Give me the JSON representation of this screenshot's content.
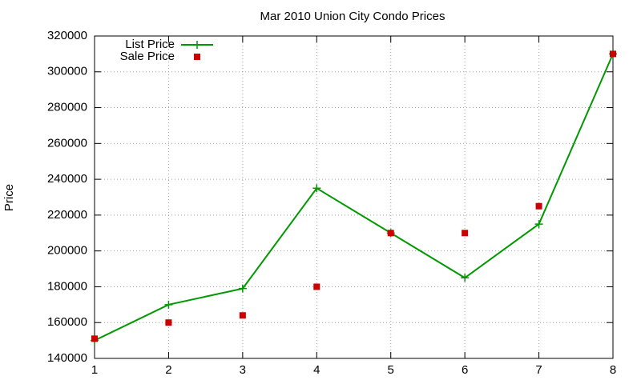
{
  "chart_data": {
    "type": "line",
    "title": "Mar 2010 Union City Condo Prices",
    "y_label": "Price",
    "x": [
      1,
      2,
      3,
      4,
      5,
      6,
      7,
      8
    ],
    "series": [
      {
        "name": "List Price",
        "color": "#009900",
        "mode": "linespoints",
        "values": [
          150000,
          170000,
          179000,
          235000,
          210000,
          185000,
          215000,
          310000
        ]
      },
      {
        "name": "Sale Price",
        "color": "#cc0000",
        "mode": "points",
        "values": [
          151000,
          160000,
          164000,
          180000,
          210000,
          210000,
          225000,
          310000
        ]
      }
    ],
    "xlim": [
      1,
      8
    ],
    "xticks": [
      1,
      2,
      3,
      4,
      5,
      6,
      7,
      8
    ],
    "ylim": [
      140000,
      320000
    ],
    "yticks": [
      140000,
      160000,
      180000,
      200000,
      220000,
      240000,
      260000,
      280000,
      300000,
      320000
    ],
    "grid": true,
    "legend": "top-left"
  }
}
